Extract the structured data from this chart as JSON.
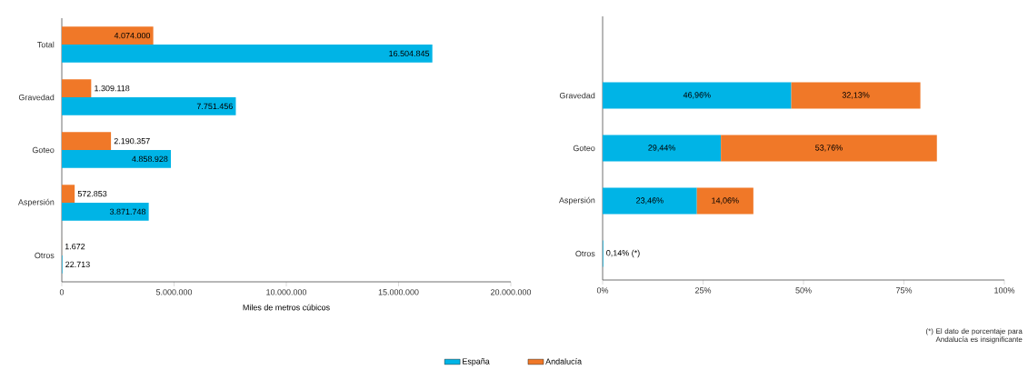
{
  "chart_data": [
    {
      "type": "bar",
      "orientation": "horizontal",
      "xlabel": "Miles de metros cúbicos",
      "categories": [
        "Total",
        "Gravedad",
        "Goteo",
        "Aspersión",
        "Otros"
      ],
      "series": [
        {
          "name": "España",
          "color": "#00b4e6",
          "values": [
            16504845,
            7751456,
            4858928,
            3871748,
            22713
          ],
          "value_labels": [
            "16.504.845",
            "7.751.456",
            "4.858.928",
            "3.871.748",
            "22.713"
          ]
        },
        {
          "name": "Andalucía",
          "color": "#f07828",
          "values": [
            4074000,
            1309118,
            2190357,
            572853,
            1672
          ],
          "value_labels": [
            "4.074.000",
            "1.309.118",
            "2.190.357",
            "572.853",
            "1.672"
          ]
        }
      ],
      "xlim": [
        0,
        20000000
      ],
      "xticks": [
        0,
        {
          "value": 5000000,
          "label": "5.000.000"
        },
        {
          "value": 10000000,
          "label": "10.000.000"
        },
        {
          "value": 15000000,
          "label": "15.000.000"
        },
        {
          "value": 20000000,
          "label": "20.000.000"
        }
      ],
      "legend": "bottom"
    },
    {
      "type": "bar",
      "orientation": "horizontal",
      "stacked": true,
      "categories": [
        null,
        "Gravedad",
        "Goteo",
        "Aspersión",
        "Otros"
      ],
      "series": [
        {
          "color": "#00b4e6",
          "values": [
            null,
            46.96,
            29.44,
            23.46,
            0.14
          ],
          "value_labels": [
            null,
            "46,96%",
            "29,44%",
            "23,46%",
            "0,14% (*)"
          ]
        },
        {
          "color": "#f07828",
          "values": [
            null,
            32.13,
            53.76,
            14.06,
            null
          ],
          "value_labels": [
            null,
            "32,13%",
            "53,76%",
            "14,06%",
            null
          ]
        }
      ],
      "xlim": [
        0,
        100
      ],
      "xticks": [
        {
          "value": 0,
          "label": "0%"
        },
        {
          "value": 25,
          "label": "25%"
        },
        {
          "value": 50,
          "label": "50%"
        },
        {
          "value": 75,
          "label": "75%"
        },
        {
          "value": 100,
          "label": "100%"
        }
      ],
      "annotations": [
        "(*) El dato de porcentaje para Andalucía es insignificante"
      ]
    }
  ]
}
